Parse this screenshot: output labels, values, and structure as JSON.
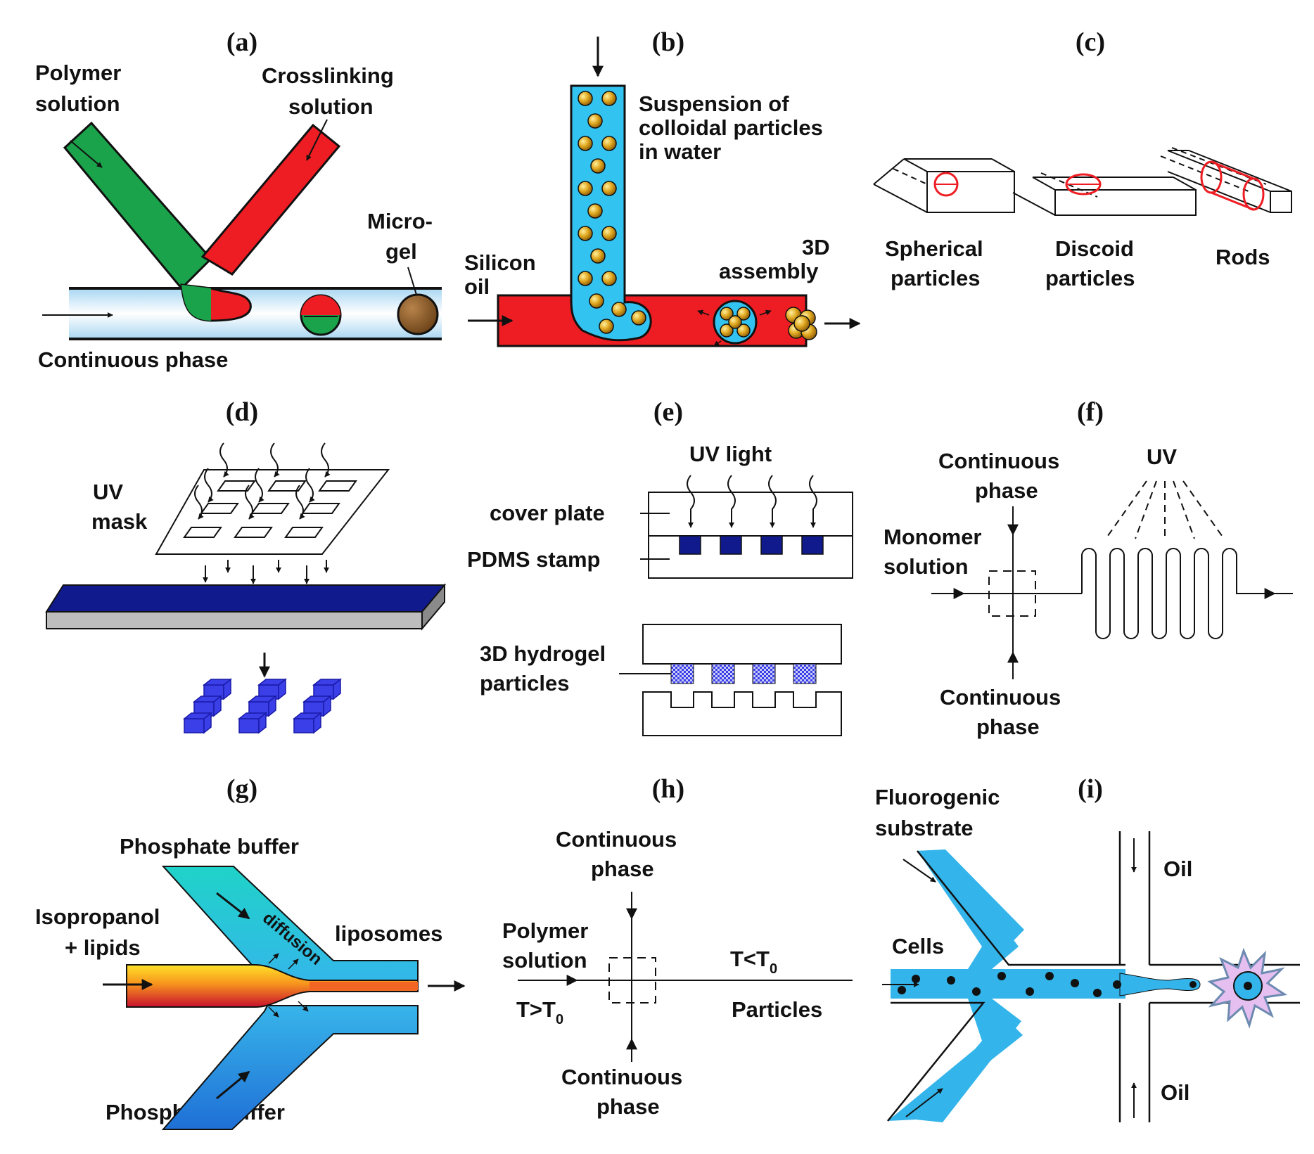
{
  "colors": {
    "green": "#1aa34a",
    "red": "#ee1d23",
    "light_blue": "#33c3f0",
    "blue_dark": "#101a8c",
    "brown": "#8a5a2b",
    "gold": "#d9a520",
    "gray": "#b5b5b5",
    "cube_blue": "#3b3fe8",
    "cyan": "#1fd3c8"
  },
  "a": {
    "label": "(a)",
    "polymer": [
      "Polymer",
      "solution"
    ],
    "crosslinking": [
      "Crosslinking",
      "solution"
    ],
    "microgel": [
      "Micro-",
      "gel"
    ],
    "continuous": "Continuous phase"
  },
  "b": {
    "label": "(b)",
    "suspension": [
      "Suspension of",
      "colloidal particles",
      "in water"
    ],
    "silicon": [
      "Silicon",
      "oil"
    ],
    "assembly": [
      "3D",
      "assembly"
    ]
  },
  "c": {
    "label": "(c)",
    "spherical": [
      "Spherical",
      "particles"
    ],
    "discoid": [
      "Discoid",
      "particles"
    ],
    "rods": "Rods"
  },
  "d": {
    "label": "(d)",
    "mask": [
      "UV",
      "mask"
    ]
  },
  "e": {
    "label": "(e)",
    "uv": "UV light",
    "cover": "cover plate",
    "pdms": "PDMS stamp",
    "hydrogel": [
      "3D hydrogel",
      "particles"
    ]
  },
  "f": {
    "label": "(f)",
    "cont_top": [
      "Continuous",
      "phase"
    ],
    "uv": "UV",
    "monomer": [
      "Monomer",
      "solution"
    ],
    "cont_bottom": [
      "Continuous",
      "phase"
    ]
  },
  "g": {
    "label": "(g)",
    "buffer_top": "Phosphate buffer",
    "isopropanol": [
      "Isopropanol",
      "+ lipids"
    ],
    "diffusion": "diffusion",
    "liposomes": "liposomes",
    "buffer_bottom": "Phosphate buffer"
  },
  "h": {
    "label": "(h)",
    "cont_top": [
      "Continuous",
      "phase"
    ],
    "polymer": [
      "Polymer",
      "solution"
    ],
    "t_less": "T<T",
    "t_less_sub": "0",
    "t_greater": "T>T",
    "t_greater_sub": "0",
    "particles": "Particles",
    "cont_bottom": [
      "Continuous",
      "phase"
    ]
  },
  "i": {
    "label": "(i)",
    "fluorogenic": [
      "Fluorogenic",
      "substrate"
    ],
    "oil_top": "Oil",
    "cells": "Cells",
    "oil_bottom": "Oil"
  }
}
